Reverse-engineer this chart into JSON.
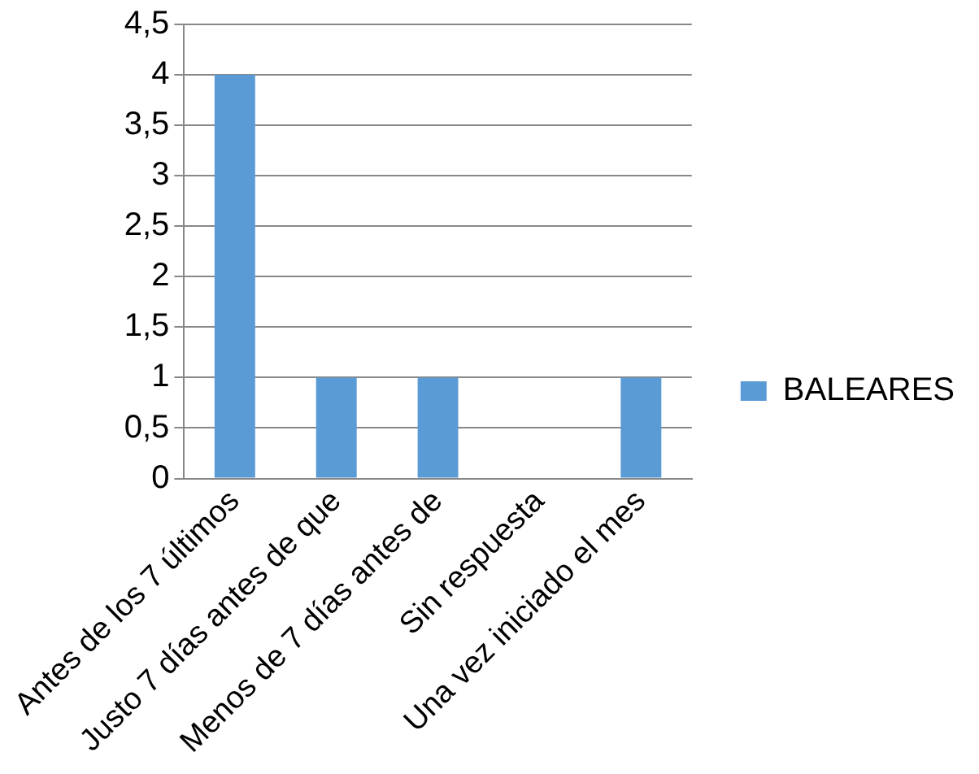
{
  "chart_data": {
    "type": "bar",
    "categories": [
      "Antes de los 7 últimos",
      "Justo 7 días antes de que",
      "Menos de 7 días antes de",
      "Sin respuesta",
      "Una vez iniciado el mes"
    ],
    "series": [
      {
        "name": "BALEARES",
        "color": "#5b9bd5",
        "values": [
          4,
          1,
          1,
          0,
          1
        ]
      }
    ],
    "ylim": [
      0,
      4.5
    ],
    "yticks": [
      0,
      {
        "value": 0.5,
        "label": "0,5"
      },
      1,
      {
        "value": 1.5,
        "label": "1,5"
      },
      2,
      {
        "value": 2.5,
        "label": "2,5"
      },
      3,
      {
        "value": 3.5,
        "label": "3,5"
      },
      4,
      {
        "value": 4.5,
        "label": "4,5"
      }
    ],
    "grid": "y",
    "legend": "right"
  }
}
